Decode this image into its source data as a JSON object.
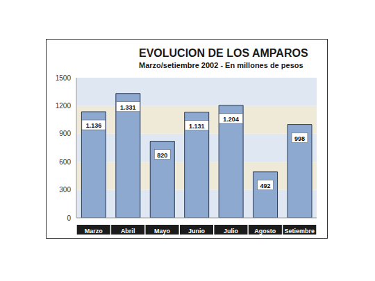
{
  "chart_data": {
    "type": "bar",
    "title": "EVOLUCION DE LOS AMPAROS",
    "subtitle": "Marzo/setiembre 2002 - En millones de pesos",
    "categories": [
      "Marzo",
      "Abril",
      "Mayo",
      "Junio",
      "Julio",
      "Agosto",
      "Setiembre"
    ],
    "values": [
      1136,
      1331,
      820,
      1131,
      1204,
      492,
      998
    ],
    "value_labels": [
      "1.136",
      "1.331",
      "820",
      "1.131",
      "1.204",
      "492",
      "998"
    ],
    "color": "#8ea9d0",
    "ylim": [
      0,
      1500
    ],
    "yticks": [
      0,
      300,
      600,
      900,
      1200,
      1500
    ],
    "grid": true,
    "data_labels": true
  }
}
